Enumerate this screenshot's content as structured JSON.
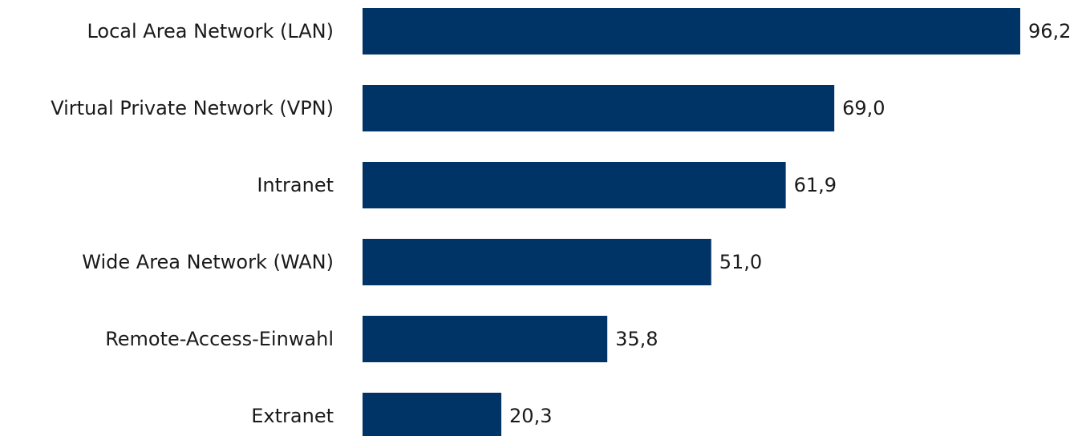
{
  "chart_data": {
    "type": "bar",
    "orientation": "horizontal",
    "categories": [
      "Local Area Network (LAN)",
      "Virtual Private Network (VPN)",
      "Intranet",
      "Wide Area Network (WAN)",
      "Remote-Access-Einwahl",
      "Extranet"
    ],
    "values": [
      96.2,
      69.0,
      61.9,
      51.0,
      35.8,
      20.3
    ],
    "value_labels": [
      "96,2",
      "69,0",
      "61,9",
      "51,0",
      "35,8",
      "20,3"
    ],
    "title": "",
    "xlabel": "",
    "ylabel": "",
    "xlim": [
      0,
      96.2
    ],
    "grid": false,
    "legend": "none",
    "bar_color": "#003366"
  }
}
